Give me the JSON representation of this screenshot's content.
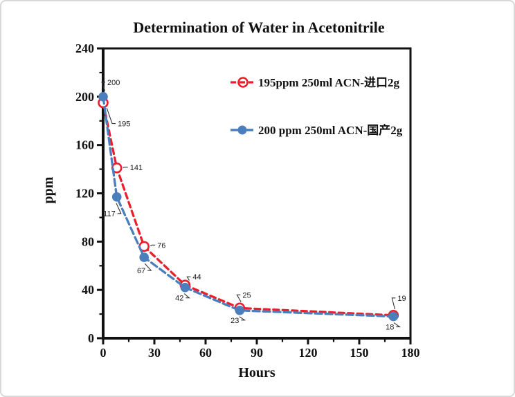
{
  "chart_data": {
    "type": "line",
    "title": "Determination of Water in Acetonitrile",
    "xlabel": "Hours",
    "ylabel": "ppm",
    "xlim": [
      0,
      180
    ],
    "ylim": [
      0,
      240
    ],
    "x_major_ticks": [
      0,
      30,
      60,
      90,
      120,
      150,
      180
    ],
    "x_minor_ticks": [
      15,
      45,
      75,
      105,
      135,
      165
    ],
    "y_major_ticks": [
      0,
      40,
      80,
      120,
      160,
      200,
      240
    ],
    "y_minor_ticks": [
      20,
      60,
      100,
      140,
      180,
      220
    ],
    "grid": false,
    "legend_position": "inside-upper-right",
    "axis_color": "#111111",
    "x": [
      0,
      8,
      24,
      48,
      80,
      170
    ],
    "series": [
      {
        "name": "195ppm  250ml ACN-进口2g",
        "color": "#e8202c",
        "line_style": "dashed",
        "marker": "open-circle",
        "values": [
          195,
          141,
          76,
          44,
          25,
          19
        ],
        "point_labels": [
          "195",
          "141",
          "76",
          "44",
          "25",
          "19"
        ]
      },
      {
        "name": "200 ppm 250ml ACN-国产2g",
        "color": "#4a7ebc",
        "line_style": "dashed",
        "marker": "filled-circle",
        "values": [
          200,
          117,
          67,
          42,
          23,
          18
        ],
        "point_labels": [
          "200",
          "117",
          "67",
          "42",
          "23",
          "18"
        ]
      }
    ]
  }
}
